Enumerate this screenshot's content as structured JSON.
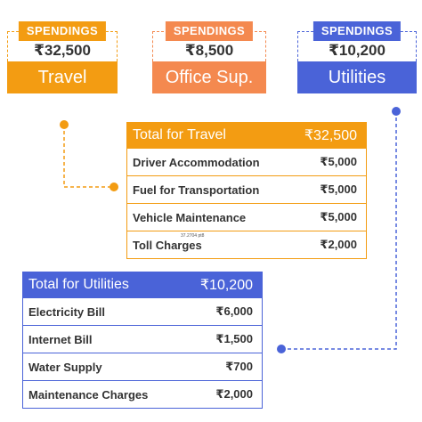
{
  "cards": [
    {
      "tag": "SPENDINGS",
      "amount": "₹32,500",
      "label": "Travel"
    },
    {
      "tag": "SPENDINGS",
      "amount": "₹8,500",
      "label": "Office Sup."
    },
    {
      "tag": "SPENDINGS",
      "amount": "₹10,200",
      "label": "Utilities"
    }
  ],
  "travel": {
    "title": "Total for Travel",
    "total": "₹32,500",
    "rows": [
      {
        "label": "Driver Accommodation",
        "value": "₹5,000"
      },
      {
        "label": "Fuel for Transportation",
        "value": "₹5,000"
      },
      {
        "label": "Vehicle Maintenance",
        "value": "₹5,000"
      },
      {
        "label": "Toll Charges",
        "value": "₹2,000"
      }
    ],
    "note": "37.2704 pt8"
  },
  "utilities": {
    "title": "Total for Utilities",
    "total": "₹10,200",
    "rows": [
      {
        "label": "Electricity Bill",
        "value": "₹6,000"
      },
      {
        "label": "Internet Bill",
        "value": "₹1,500"
      },
      {
        "label": "Water Supply",
        "value": "₹700"
      },
      {
        "label": "Maintenance Charges",
        "value": "₹2,000"
      }
    ]
  },
  "colors": {
    "orange": "#f39c12",
    "salmon": "#f4894f",
    "blue": "#4a63d8"
  }
}
